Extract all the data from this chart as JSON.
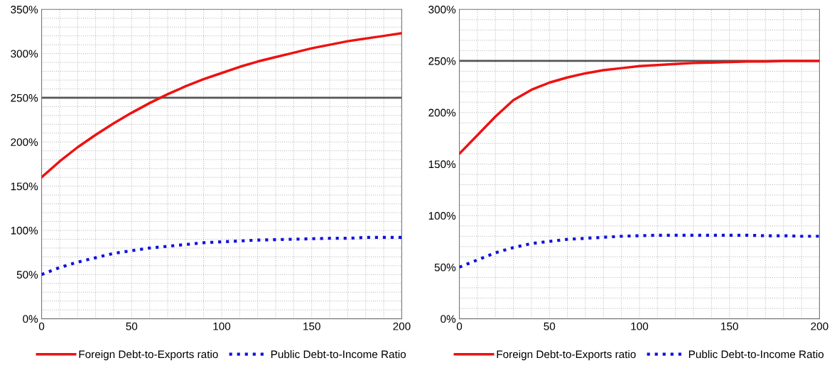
{
  "chart_data": [
    {
      "type": "line",
      "x": [
        0,
        10,
        20,
        30,
        40,
        50,
        60,
        70,
        80,
        90,
        100,
        110,
        120,
        130,
        140,
        150,
        160,
        170,
        180,
        190,
        200
      ],
      "series": [
        {
          "name": "Foreign Debt-to-Exports ratio",
          "color": "#ee1111",
          "line_style": "solid",
          "values": [
            160,
            178,
            194,
            208,
            221,
            233,
            244,
            254,
            263,
            271,
            278,
            285,
            291,
            296,
            301,
            306,
            310,
            314,
            317,
            320,
            323
          ]
        },
        {
          "name": "Public Debt-to-Income Ratio",
          "color": "#1111dd",
          "line_style": "dotted",
          "values": [
            50,
            58,
            64,
            69,
            74,
            77,
            80,
            82,
            84,
            86,
            87,
            88,
            89,
            89.5,
            90,
            90.5,
            91,
            91,
            92,
            92,
            92
          ]
        }
      ],
      "xlim": [
        0,
        200
      ],
      "xticks": [
        0,
        50,
        100,
        150,
        200
      ],
      "ylim": [
        0,
        350
      ],
      "yticks": [
        {
          "value": 0,
          "label": "0%"
        },
        {
          "value": 50,
          "label": "50%"
        },
        {
          "value": 100,
          "label": "100%"
        },
        {
          "value": 150,
          "label": "150%"
        },
        {
          "value": 200,
          "label": "200%"
        },
        {
          "value": 250,
          "label": "250%"
        },
        {
          "value": 300,
          "label": "300%"
        },
        {
          "value": 350,
          "label": "350%"
        }
      ],
      "ref_lines": [
        {
          "axis": "y",
          "value": 250,
          "color": "#555555"
        }
      ],
      "grid": true,
      "legend": "bottom",
      "marker": "none"
    },
    {
      "type": "line",
      "x": [
        0,
        10,
        20,
        30,
        40,
        50,
        60,
        70,
        80,
        90,
        100,
        110,
        120,
        130,
        140,
        150,
        160,
        170,
        180,
        190,
        200
      ],
      "series": [
        {
          "name": "Foreign Debt-to-Exports ratio",
          "color": "#ee1111",
          "line_style": "solid",
          "values": [
            160,
            178,
            196,
            212,
            222,
            229,
            234,
            238,
            241,
            243,
            245,
            246,
            247,
            248,
            248.5,
            249,
            249.5,
            249.5,
            250,
            250,
            250
          ]
        },
        {
          "name": "Public Debt-to-Income Ratio",
          "color": "#1111dd",
          "line_style": "dotted",
          "values": [
            50,
            57,
            64,
            69,
            73,
            75,
            77,
            78,
            79,
            80,
            80.5,
            81,
            81,
            81,
            81,
            81,
            81,
            80.5,
            80.5,
            80,
            80
          ]
        }
      ],
      "xlim": [
        0,
        200
      ],
      "xticks": [
        0,
        50,
        100,
        150,
        200
      ],
      "ylim": [
        0,
        300
      ],
      "yticks": [
        {
          "value": 0,
          "label": "0%"
        },
        {
          "value": 50,
          "label": "50%"
        },
        {
          "value": 100,
          "label": "100%"
        },
        {
          "value": 150,
          "label": "150%"
        },
        {
          "value": 200,
          "label": "200%"
        },
        {
          "value": 250,
          "label": "250%"
        },
        {
          "value": 300,
          "label": "300%"
        }
      ],
      "ref_lines": [
        {
          "axis": "y",
          "value": 250,
          "color": "#555555"
        }
      ],
      "grid": true,
      "legend": "bottom",
      "marker": "none"
    }
  ]
}
